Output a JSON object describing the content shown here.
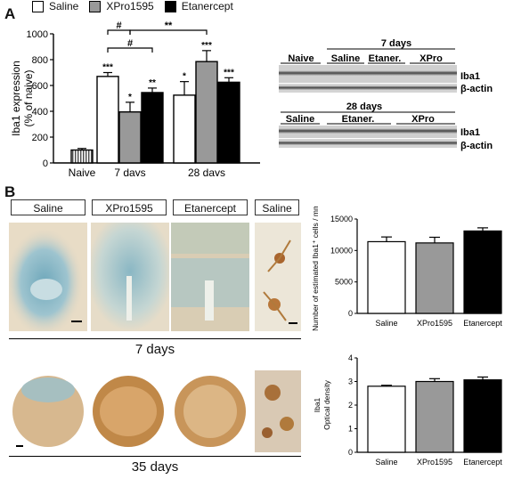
{
  "panels": {
    "a": "A",
    "b": "B"
  },
  "colors": {
    "saline": "#ffffff",
    "xpro": "#999999",
    "etanercept": "#000000",
    "naive": "#ffffff",
    "stain_blue": "#9ac2cf",
    "stain_brown": "#b07a3c",
    "tissue": "#e6d6bf"
  },
  "legend": [
    {
      "label": "Saline",
      "color": "#ffffff"
    },
    {
      "label": "XPro1595",
      "color": "#999999"
    },
    {
      "label": "Etanercept",
      "color": "#000000"
    }
  ],
  "chart_data": [
    {
      "type": "bar",
      "ylabel": "Iba1 expression\n(% of naive)",
      "ylim": [
        0,
        1000
      ],
      "yticks": [
        "0",
        "200",
        "400",
        "600",
        "800",
        "1000"
      ],
      "categories": [
        "Naive",
        "7 days",
        "28 days"
      ],
      "series": [
        {
          "name": "Naive",
          "category": "Naive",
          "value": 100,
          "err": 12,
          "pattern": "hatch",
          "label": ""
        },
        {
          "name": "Saline",
          "category": "7 days",
          "value": 670,
          "err": 30,
          "label": "***"
        },
        {
          "name": "XPro1595",
          "category": "7 days",
          "value": 395,
          "err": 75,
          "label": "*"
        },
        {
          "name": "Etanercept",
          "category": "7 days",
          "value": 545,
          "err": 35,
          "label": "**"
        },
        {
          "name": "Saline",
          "category": "28 days",
          "value": 525,
          "err": 105,
          "label": "*"
        },
        {
          "name": "XPro1595",
          "category": "28 days",
          "value": 785,
          "err": 85,
          "label": "***"
        },
        {
          "name": "Etanercept",
          "category": "28 days",
          "value": 625,
          "err": 35,
          "label": "***"
        }
      ],
      "brackets": [
        "#",
        "#",
        "**"
      ]
    },
    {
      "type": "bar",
      "ylabel": "Number of estimated Iba1⁺ cells / mm²",
      "ylim": [
        0,
        15000
      ],
      "yticks": [
        "0",
        "5000",
        "10000",
        "15000"
      ],
      "categories": [
        "Saline",
        "XPro1595",
        "Etanercept"
      ],
      "values": [
        11400,
        11200,
        13100
      ],
      "errors": [
        750,
        900,
        500
      ]
    },
    {
      "type": "bar",
      "ylabel": "Iba1\nOptical density",
      "ylim": [
        0,
        4
      ],
      "yticks": [
        "0",
        "1",
        "2",
        "3",
        "4"
      ],
      "categories": [
        "Saline",
        "XPro1595",
        "Etanercept"
      ],
      "values": [
        2.8,
        3.0,
        3.07
      ],
      "errors": [
        0.04,
        0.12,
        0.12
      ]
    }
  ],
  "blot": {
    "blot1": {
      "labels": [
        "Naive",
        "Saline",
        "Etaner.",
        "XPro"
      ],
      "header": "7 days",
      "bands": [
        "Iba1",
        "β-actin"
      ]
    },
    "blot2": {
      "labels": [
        "Saline",
        "Etaner.",
        "XPro"
      ],
      "header": "28 days",
      "bands": [
        "Iba1",
        "β-actin"
      ]
    }
  },
  "panel_b": {
    "labels": [
      "Saline",
      "XPro1595",
      "Etanercept",
      "Saline"
    ],
    "days_top": "7 days",
    "days_bottom": "35 days"
  }
}
